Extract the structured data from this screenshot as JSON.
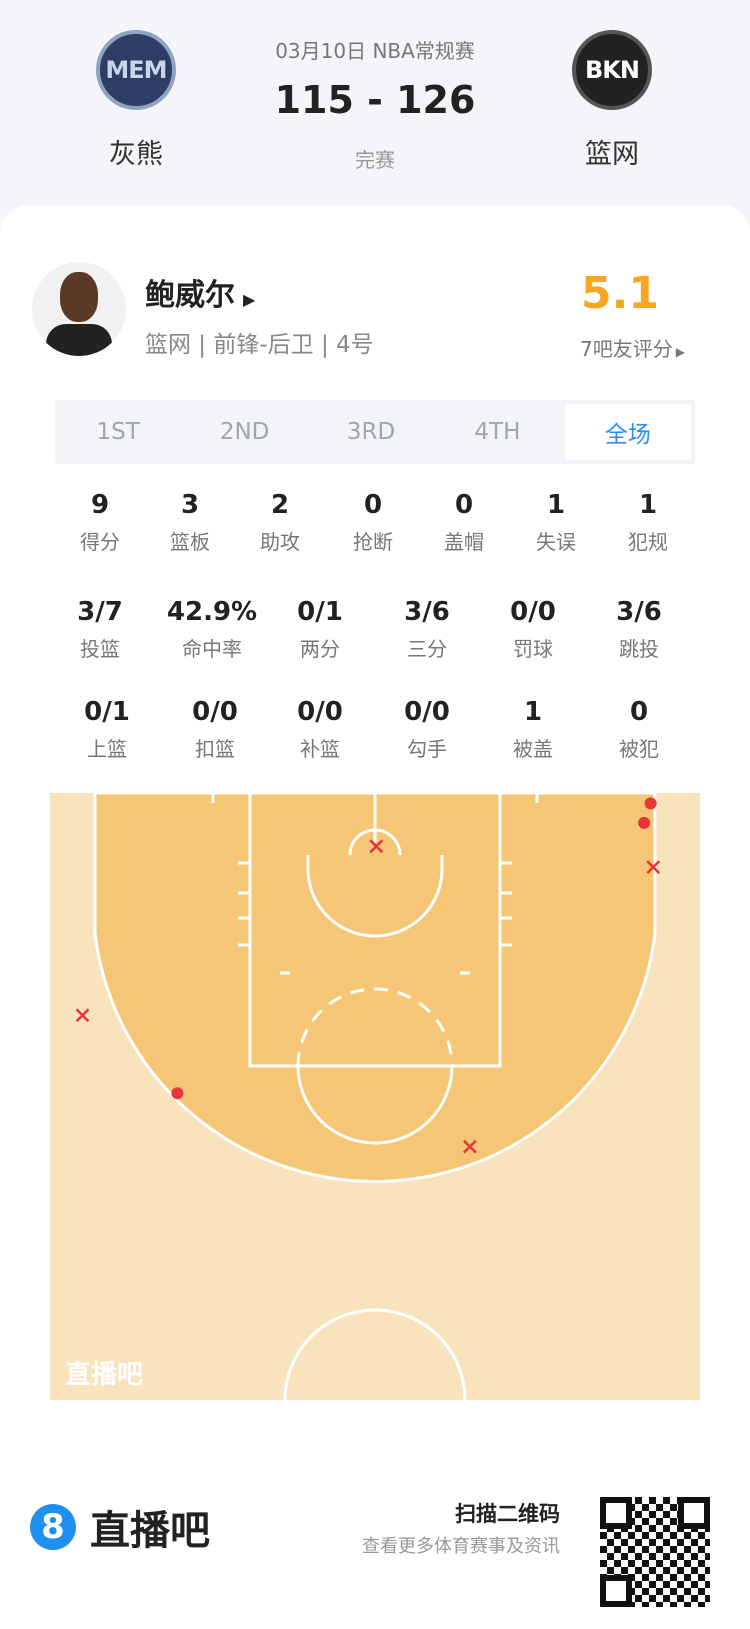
{
  "header": {
    "date_league": "03月10日 NBA常规赛",
    "score": "115 - 126",
    "status": "完赛",
    "home": {
      "abbr": "MEM",
      "name": "灰熊"
    },
    "away": {
      "abbr": "BKN",
      "name": "篮网"
    }
  },
  "player": {
    "name": "鲍威尔",
    "info": "篮网 | 前锋-后卫 | 4号",
    "rating": "5.1",
    "rating_label": "7吧友评分",
    "rating_color": "#f5a623"
  },
  "tabs": [
    "1ST",
    "2ND",
    "3RD",
    "4TH",
    "全场"
  ],
  "active_tab": "全场",
  "stats_row1": [
    {
      "v": "9",
      "l": "得分"
    },
    {
      "v": "3",
      "l": "篮板"
    },
    {
      "v": "2",
      "l": "助攻"
    },
    {
      "v": "0",
      "l": "抢断"
    },
    {
      "v": "0",
      "l": "盖帽"
    },
    {
      "v": "1",
      "l": "失误"
    },
    {
      "v": "1",
      "l": "犯规"
    }
  ],
  "stats_row2": [
    {
      "v": "3/7",
      "l": "投篮"
    },
    {
      "v": "42.9%",
      "l": "命中率"
    },
    {
      "v": "0/1",
      "l": "两分"
    },
    {
      "v": "3/6",
      "l": "三分"
    },
    {
      "v": "0/0",
      "l": "罚球"
    },
    {
      "v": "3/6",
      "l": "跳投"
    }
  ],
  "stats_row3": [
    {
      "v": "0/1",
      "l": "上篮"
    },
    {
      "v": "0/0",
      "l": "扣篮"
    },
    {
      "v": "0/0",
      "l": "补篮"
    },
    {
      "v": "0/0",
      "l": "勾手"
    },
    {
      "v": "1",
      "l": "被盖"
    },
    {
      "v": "0",
      "l": "被犯"
    }
  ],
  "court": {
    "watermark": "直播吧",
    "made_color": "#e8343a",
    "miss_color": "#e8343a",
    "shots": [
      {
        "x_ft": 21.2,
        "y_ft": 0.8,
        "made": true
      },
      {
        "x_ft": 20.7,
        "y_ft": 2.3,
        "made": true
      },
      {
        "x_ft": -15.2,
        "y_ft": 23.1,
        "made": true
      },
      {
        "x_ft": 0.1,
        "y_ft": 4.1,
        "made": false
      },
      {
        "x_ft": 21.4,
        "y_ft": 5.7,
        "made": false
      },
      {
        "x_ft": -22.5,
        "y_ft": 17.1,
        "made": false
      },
      {
        "x_ft": 7.3,
        "y_ft": 27.2,
        "made": false
      }
    ]
  },
  "footer": {
    "brand": "直播吧",
    "qr_title": "扫描二维码",
    "qr_sub": "查看更多体育赛事及资讯",
    "brand_color": "#1f8ff0"
  }
}
